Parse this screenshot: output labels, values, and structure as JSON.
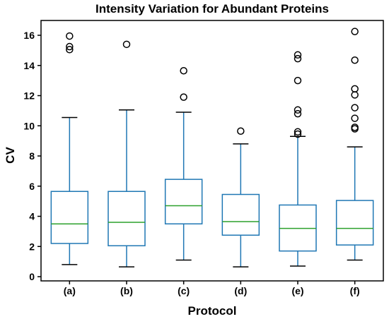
{
  "chart_data": {
    "type": "box",
    "title": "Intensity Variation for Abundant Proteins",
    "xlabel": "Protocol",
    "ylabel": "CV",
    "ylim": [
      0,
      17
    ],
    "yticks": [
      0,
      2,
      4,
      6,
      8,
      10,
      12,
      14,
      16
    ],
    "categories": [
      "(a)",
      "(b)",
      "(c)",
      "(d)",
      "(e)",
      "(f)"
    ],
    "boxes": [
      {
        "label": "(a)",
        "whisker_low": 0.8,
        "q1": 2.2,
        "median": 3.5,
        "q3": 5.65,
        "whisker_high": 10.55,
        "outliers": [
          15.95,
          15.25,
          15.05
        ]
      },
      {
        "label": "(b)",
        "whisker_low": 0.65,
        "q1": 2.05,
        "median": 3.6,
        "q3": 5.65,
        "whisker_high": 11.05,
        "outliers": [
          15.4
        ]
      },
      {
        "label": "(c)",
        "whisker_low": 1.1,
        "q1": 3.5,
        "median": 4.7,
        "q3": 6.45,
        "whisker_high": 10.9,
        "outliers": [
          13.65,
          11.9
        ]
      },
      {
        "label": "(d)",
        "whisker_low": 0.65,
        "q1": 2.75,
        "median": 3.65,
        "q3": 5.45,
        "whisker_high": 8.8,
        "outliers": [
          9.65
        ]
      },
      {
        "label": "(e)",
        "whisker_low": 0.7,
        "q1": 1.7,
        "median": 3.2,
        "q3": 4.75,
        "whisker_high": 9.3,
        "outliers": [
          14.7,
          14.45,
          13.0,
          11.05,
          10.8,
          9.6,
          9.45
        ]
      },
      {
        "label": "(f)",
        "whisker_low": 1.1,
        "q1": 2.1,
        "median": 3.2,
        "q3": 5.05,
        "whisker_high": 8.6,
        "outliers": [
          16.25,
          14.35,
          12.45,
          12.05,
          11.2,
          10.5,
          9.9,
          9.8
        ]
      }
    ],
    "colors": {
      "box": "#1f77b4",
      "median": "#2ca02c",
      "whisker_cap": "#000000",
      "outlier": "#000000"
    },
    "grid": false,
    "legend": "none"
  }
}
